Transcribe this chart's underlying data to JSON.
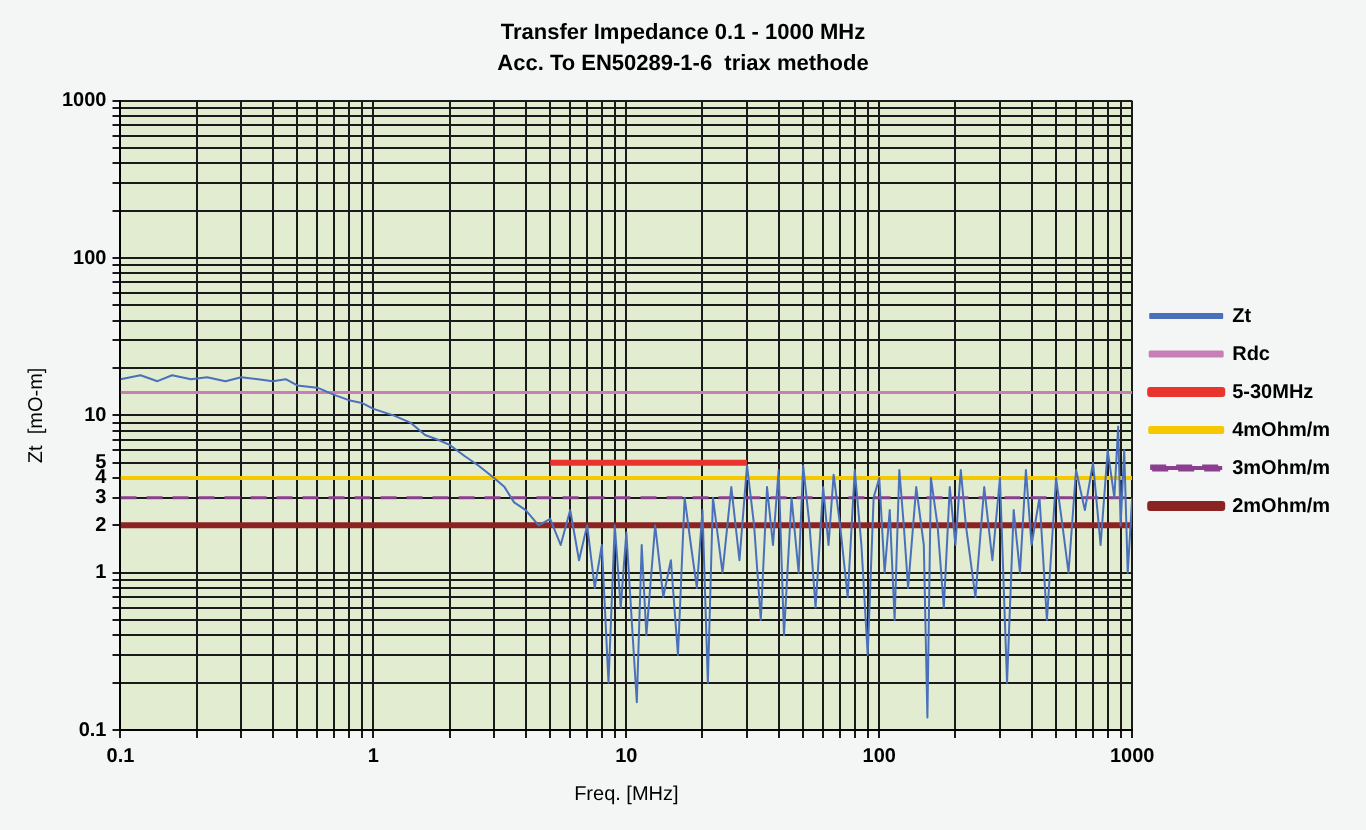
{
  "chart_data": {
    "type": "line",
    "title": "Transfer Impedance 0.1 - 1000 MHz",
    "subtitle": "Acc. To EN50289-1-6  triax methode",
    "xlabel": "Freq. [MHz]",
    "ylabel": "Zt  [mO-m]",
    "log": "xy",
    "grid": true,
    "legend": "right",
    "marker": "none",
    "xlim": [
      0.1,
      1000
    ],
    "ylim": [
      0.1,
      1000
    ],
    "xticks": [
      0.1,
      {
        "value": 0.2,
        "label": null
      },
      {
        "value": 0.3,
        "label": null
      },
      {
        "value": 0.4,
        "label": null
      },
      {
        "value": 0.5,
        "label": null
      },
      {
        "value": 0.6,
        "label": null
      },
      {
        "value": 0.7,
        "label": null
      },
      {
        "value": 0.8,
        "label": null
      },
      {
        "value": 0.9,
        "label": null
      },
      1,
      {
        "value": 2,
        "label": null
      },
      {
        "value": 3,
        "label": null
      },
      {
        "value": 4,
        "label": null
      },
      {
        "value": 5,
        "label": null
      },
      {
        "value": 6,
        "label": null
      },
      {
        "value": 7,
        "label": null
      },
      {
        "value": 8,
        "label": null
      },
      {
        "value": 9,
        "label": null
      },
      10,
      {
        "value": 20,
        "label": null
      },
      {
        "value": 30,
        "label": null
      },
      {
        "value": 40,
        "label": null
      },
      {
        "value": 50,
        "label": null
      },
      {
        "value": 60,
        "label": null
      },
      {
        "value": 70,
        "label": null
      },
      {
        "value": 80,
        "label": null
      },
      {
        "value": 90,
        "label": null
      },
      100,
      {
        "value": 200,
        "label": null
      },
      {
        "value": 300,
        "label": null
      },
      {
        "value": 400,
        "label": null
      },
      {
        "value": 500,
        "label": null
      },
      {
        "value": 600,
        "label": null
      },
      {
        "value": 700,
        "label": null
      },
      {
        "value": 800,
        "label": null
      },
      {
        "value": 900,
        "label": null
      },
      1000
    ],
    "yticks": [
      0.1,
      {
        "value": 0.2,
        "label": null
      },
      {
        "value": 0.3,
        "label": null
      },
      {
        "value": 0.4,
        "label": null
      },
      {
        "value": 0.5,
        "label": null
      },
      {
        "value": 0.6,
        "label": null
      },
      {
        "value": 0.7,
        "label": null
      },
      {
        "value": 0.8,
        "label": null
      },
      {
        "value": 0.9,
        "label": null
      },
      1,
      2,
      3,
      4,
      5,
      {
        "value": 6,
        "label": null
      },
      {
        "value": 7,
        "label": null
      },
      {
        "value": 8,
        "label": null
      },
      {
        "value": 9,
        "label": null
      },
      10,
      {
        "value": 20,
        "label": null
      },
      {
        "value": 30,
        "label": null
      },
      {
        "value": 40,
        "label": null
      },
      {
        "value": 50,
        "label": null
      },
      {
        "value": 60,
        "label": null
      },
      {
        "value": 70,
        "label": null
      },
      {
        "value": 80,
        "label": null
      },
      {
        "value": 90,
        "label": null
      },
      100,
      {
        "value": 200,
        "label": null
      },
      {
        "value": 300,
        "label": null
      },
      {
        "value": 400,
        "label": null
      },
      {
        "value": 500,
        "label": null
      },
      {
        "value": 600,
        "label": null
      },
      {
        "value": 700,
        "label": null
      },
      {
        "value": 800,
        "label": null
      },
      {
        "value": 900,
        "label": null
      },
      1000
    ],
    "series": [
      {
        "name": "Zt",
        "color": "#4a70bc",
        "x": [
          0.1,
          0.12,
          0.14,
          0.16,
          0.19,
          0.22,
          0.26,
          0.3,
          0.35,
          0.4,
          0.45,
          0.5,
          0.6,
          0.7,
          0.8,
          0.9,
          1,
          1.2,
          1.4,
          1.6,
          1.8,
          2,
          2.3,
          2.6,
          3,
          3.3,
          3.6,
          4,
          4.5,
          5,
          5.5,
          6,
          6.5,
          7,
          7.5,
          8,
          8.5,
          9,
          9.5,
          10,
          10.5,
          11,
          11.5,
          12,
          13,
          14,
          15,
          16,
          17,
          18,
          19,
          20,
          21,
          22,
          24,
          26,
          28,
          30,
          32,
          34,
          36,
          38,
          40,
          42,
          45,
          48,
          50,
          53,
          56,
          60,
          63,
          66,
          70,
          75,
          80,
          85,
          90,
          95,
          100,
          105,
          110,
          115,
          120,
          125,
          130,
          140,
          150,
          155,
          160,
          170,
          180,
          190,
          200,
          210,
          220,
          240,
          260,
          280,
          300,
          320,
          340,
          360,
          380,
          400,
          430,
          460,
          500,
          530,
          560,
          600,
          650,
          700,
          750,
          800,
          850,
          880,
          900,
          930,
          960,
          1000
        ],
        "values": [
          17,
          18,
          16.5,
          18,
          17,
          17.5,
          16.5,
          17.5,
          17,
          16.5,
          17,
          15.5,
          15,
          13.5,
          12.5,
          12,
          11,
          10,
          9,
          7.5,
          7,
          6.5,
          5.5,
          4.8,
          4,
          3.5,
          2.8,
          2.5,
          2,
          2.2,
          1.5,
          2.5,
          1.2,
          2,
          0.8,
          1.5,
          0.2,
          2,
          0.6,
          1.8,
          0.5,
          0.15,
          1.5,
          0.4,
          2,
          0.7,
          1.2,
          0.3,
          3,
          1.5,
          0.8,
          2.5,
          0.2,
          3,
          1,
          3.5,
          1.2,
          4.8,
          2,
          0.5,
          3.5,
          1.5,
          4.5,
          0.4,
          3,
          1,
          4.8,
          2,
          0.6,
          3.5,
          1.5,
          4.2,
          2,
          0.7,
          4.5,
          1.5,
          0.3,
          3,
          4,
          1,
          2.5,
          0.5,
          4.5,
          2,
          0.8,
          3.5,
          1.5,
          0.12,
          4,
          2,
          0.6,
          3.5,
          1.5,
          4.5,
          2,
          0.7,
          3.5,
          1.2,
          4,
          0.2,
          2.5,
          1,
          4.5,
          1.5,
          3,
          0.5,
          4,
          2,
          1,
          4.5,
          2.5,
          5,
          1.5,
          6,
          3,
          8.5,
          2,
          6,
          1,
          3
        ]
      },
      {
        "name": "Rdc",
        "color": "#c87fb8",
        "x": [
          0.1,
          1000
        ],
        "values": [
          14,
          14
        ]
      },
      {
        "name": "5-30MHz",
        "color": "#e8342c",
        "x": [
          5,
          30
        ],
        "values": [
          5,
          5
        ]
      },
      {
        "name": "4mOhm/m",
        "color": "#f5c800",
        "x": [
          0.1,
          1000
        ],
        "values": [
          4,
          4
        ]
      },
      {
        "name": "3mOhm/m",
        "color": "#8b3f8f",
        "x": [
          0.1,
          1000
        ],
        "values": [
          3,
          3
        ],
        "line_style": "dashed"
      },
      {
        "name": "2mOhm/m",
        "color": "#8b2323",
        "x": [
          0.1,
          1000
        ],
        "values": [
          2,
          2
        ]
      }
    ]
  }
}
